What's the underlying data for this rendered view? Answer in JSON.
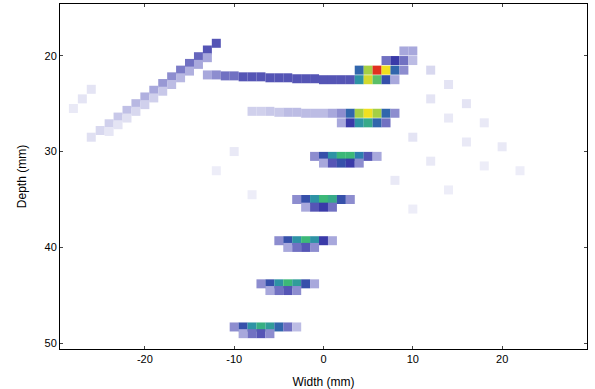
{
  "chart_data": {
    "type": "heatmap",
    "x_label": "Width (mm)",
    "y_label": "Depth (mm)",
    "xlim": [
      -29.5,
      29.5
    ],
    "ylim": [
      14.6,
      50.6
    ],
    "xticks": [
      -20,
      -10,
      0,
      10,
      20
    ],
    "yticks": [
      20,
      30,
      40,
      50
    ],
    "zlim": [
      0,
      1
    ],
    "grid": false,
    "cells": [
      [
        4,
        21.5,
        0.6
      ],
      [
        5,
        21.5,
        0.85
      ],
      [
        6,
        21.5,
        1.0
      ],
      [
        7,
        21.5,
        0.9
      ],
      [
        8,
        21.5,
        0.6
      ],
      [
        9,
        21.5,
        0.35
      ],
      [
        3,
        22.5,
        0.45
      ],
      [
        4,
        22.5,
        0.7
      ],
      [
        5,
        22.5,
        0.88
      ],
      [
        6,
        22.5,
        0.8
      ],
      [
        7,
        22.5,
        0.55
      ],
      [
        8,
        22.5,
        0.3
      ],
      [
        7,
        20.5,
        0.4
      ],
      [
        8,
        20.5,
        0.5
      ],
      [
        9,
        20.5,
        0.4
      ],
      [
        10,
        20.5,
        0.25
      ],
      [
        9,
        19.5,
        0.3
      ],
      [
        10,
        19.5,
        0.3
      ],
      [
        -13,
        22.0,
        0.3
      ],
      [
        -12,
        22.0,
        0.35
      ],
      [
        -11,
        22.1,
        0.4
      ],
      [
        -10,
        22.1,
        0.4
      ],
      [
        -9,
        22.2,
        0.45
      ],
      [
        -8,
        22.2,
        0.45
      ],
      [
        -7,
        22.2,
        0.45
      ],
      [
        -6,
        22.3,
        0.45
      ],
      [
        -5,
        22.3,
        0.45
      ],
      [
        -4,
        22.3,
        0.45
      ],
      [
        -3,
        22.4,
        0.45
      ],
      [
        -2,
        22.4,
        0.45
      ],
      [
        -1,
        22.4,
        0.45
      ],
      [
        0,
        22.5,
        0.45
      ],
      [
        1,
        22.5,
        0.45
      ],
      [
        2,
        22.5,
        0.45
      ],
      [
        -8,
        25.8,
        0.2
      ],
      [
        -7,
        25.8,
        0.2
      ],
      [
        -6,
        25.8,
        0.22
      ],
      [
        -5,
        25.9,
        0.22
      ],
      [
        -4,
        25.9,
        0.25
      ],
      [
        -3,
        25.9,
        0.25
      ],
      [
        -2,
        26.0,
        0.25
      ],
      [
        -1,
        26.0,
        0.25
      ],
      [
        0,
        26.0,
        0.25
      ],
      [
        1,
        26.0,
        0.3
      ],
      [
        2,
        26.0,
        0.35
      ],
      [
        3,
        26.0,
        0.6
      ],
      [
        4,
        26.0,
        0.85
      ],
      [
        5,
        26.0,
        0.9
      ],
      [
        6,
        26.0,
        0.85
      ],
      [
        7,
        26.0,
        0.6
      ],
      [
        8,
        26.0,
        0.35
      ],
      [
        2,
        27.0,
        0.3
      ],
      [
        3,
        27.0,
        0.5
      ],
      [
        4,
        27.0,
        0.7
      ],
      [
        5,
        27.0,
        0.75
      ],
      [
        6,
        27.0,
        0.6
      ],
      [
        7,
        27.0,
        0.4
      ],
      [
        -1,
        30.5,
        0.35
      ],
      [
        0,
        30.5,
        0.55
      ],
      [
        1,
        30.5,
        0.7
      ],
      [
        2,
        30.5,
        0.78
      ],
      [
        3,
        30.5,
        0.78
      ],
      [
        4,
        30.5,
        0.65
      ],
      [
        5,
        30.5,
        0.45
      ],
      [
        6,
        30.5,
        0.3
      ],
      [
        0,
        31.2,
        0.3
      ],
      [
        1,
        31.2,
        0.45
      ],
      [
        2,
        31.2,
        0.55
      ],
      [
        3,
        31.2,
        0.5
      ],
      [
        4,
        31.2,
        0.35
      ],
      [
        -3,
        35.0,
        0.35
      ],
      [
        -2,
        35.0,
        0.55
      ],
      [
        -1,
        35.0,
        0.7
      ],
      [
        0,
        35.0,
        0.78
      ],
      [
        1,
        35.0,
        0.75
      ],
      [
        2,
        35.0,
        0.55
      ],
      [
        3,
        35.0,
        0.35
      ],
      [
        -2,
        35.8,
        0.3
      ],
      [
        -1,
        35.8,
        0.45
      ],
      [
        0,
        35.8,
        0.5
      ],
      [
        1,
        35.8,
        0.4
      ],
      [
        -5,
        39.3,
        0.35
      ],
      [
        -4,
        39.3,
        0.55
      ],
      [
        -3,
        39.3,
        0.7
      ],
      [
        -2,
        39.3,
        0.78
      ],
      [
        -1,
        39.3,
        0.7
      ],
      [
        0,
        39.3,
        0.5
      ],
      [
        1,
        39.3,
        0.3
      ],
      [
        -4,
        40.0,
        0.3
      ],
      [
        -3,
        40.0,
        0.4
      ],
      [
        -2,
        40.0,
        0.45
      ],
      [
        -1,
        40.0,
        0.35
      ],
      [
        -7,
        43.8,
        0.35
      ],
      [
        -6,
        43.8,
        0.55
      ],
      [
        -5,
        43.8,
        0.7
      ],
      [
        -4,
        43.8,
        0.78
      ],
      [
        -3,
        43.8,
        0.72
      ],
      [
        -2,
        43.8,
        0.55
      ],
      [
        -1,
        43.8,
        0.3
      ],
      [
        -6,
        44.5,
        0.3
      ],
      [
        -5,
        44.5,
        0.4
      ],
      [
        -4,
        44.5,
        0.45
      ],
      [
        -3,
        44.5,
        0.35
      ],
      [
        -10,
        48.3,
        0.35
      ],
      [
        -9,
        48.3,
        0.55
      ],
      [
        -8,
        48.3,
        0.7
      ],
      [
        -7,
        48.3,
        0.76
      ],
      [
        -6,
        48.3,
        0.72
      ],
      [
        -5,
        48.3,
        0.6
      ],
      [
        -4,
        48.3,
        0.4
      ],
      [
        -3,
        48.3,
        0.25
      ],
      [
        -9,
        49.0,
        0.3
      ],
      [
        -8,
        49.0,
        0.4
      ],
      [
        -7,
        49.0,
        0.45
      ],
      [
        -6,
        49.0,
        0.35
      ],
      [
        -12,
        18.7,
        0.45
      ],
      [
        -13,
        19.4,
        0.45
      ],
      [
        -14,
        20.1,
        0.42
      ],
      [
        -15,
        20.8,
        0.4
      ],
      [
        -16,
        21.5,
        0.38
      ],
      [
        -17,
        22.2,
        0.35
      ],
      [
        -18,
        22.9,
        0.33
      ],
      [
        -19,
        23.6,
        0.3
      ],
      [
        -20,
        24.3,
        0.28
      ],
      [
        -21,
        25.0,
        0.26
      ],
      [
        -22,
        25.7,
        0.24
      ],
      [
        -23,
        26.4,
        0.22
      ],
      [
        -24,
        27.1,
        0.2
      ],
      [
        -25,
        27.8,
        0.18
      ],
      [
        -26,
        28.5,
        0.16
      ],
      [
        -13,
        20.2,
        0.3
      ],
      [
        -14,
        20.9,
        0.3
      ],
      [
        -15,
        21.6,
        0.28
      ],
      [
        -16,
        22.3,
        0.26
      ],
      [
        -17,
        23.0,
        0.25
      ],
      [
        -18,
        23.7,
        0.22
      ],
      [
        -19,
        24.4,
        0.2
      ],
      [
        -20,
        25.1,
        0.2
      ],
      [
        -21,
        25.8,
        0.18
      ],
      [
        -22,
        26.5,
        0.16
      ],
      [
        -23,
        27.2,
        0.15
      ],
      [
        -24,
        27.9,
        0.14
      ],
      [
        -27,
        24.5,
        0.15
      ],
      [
        -28,
        25.5,
        0.12
      ],
      [
        -26,
        23.5,
        0.15
      ],
      [
        12,
        21.5,
        0.18
      ],
      [
        14,
        23.0,
        0.15
      ],
      [
        16,
        25.0,
        0.15
      ],
      [
        18,
        27.0,
        0.12
      ],
      [
        20,
        29.5,
        0.12
      ],
      [
        22,
        32.0,
        0.1
      ],
      [
        12,
        24.5,
        0.15
      ],
      [
        14,
        26.5,
        0.12
      ],
      [
        16,
        29.0,
        0.12
      ],
      [
        18,
        31.5,
        0.1
      ],
      [
        10,
        28.5,
        0.15
      ],
      [
        12,
        31.0,
        0.12
      ],
      [
        14,
        34.0,
        0.1
      ],
      [
        8,
        33.0,
        0.12
      ],
      [
        10,
        36.0,
        0.1
      ],
      [
        -10,
        30.0,
        0.12
      ],
      [
        -12,
        32.0,
        0.1
      ],
      [
        -8,
        34.5,
        0.1
      ]
    ]
  }
}
